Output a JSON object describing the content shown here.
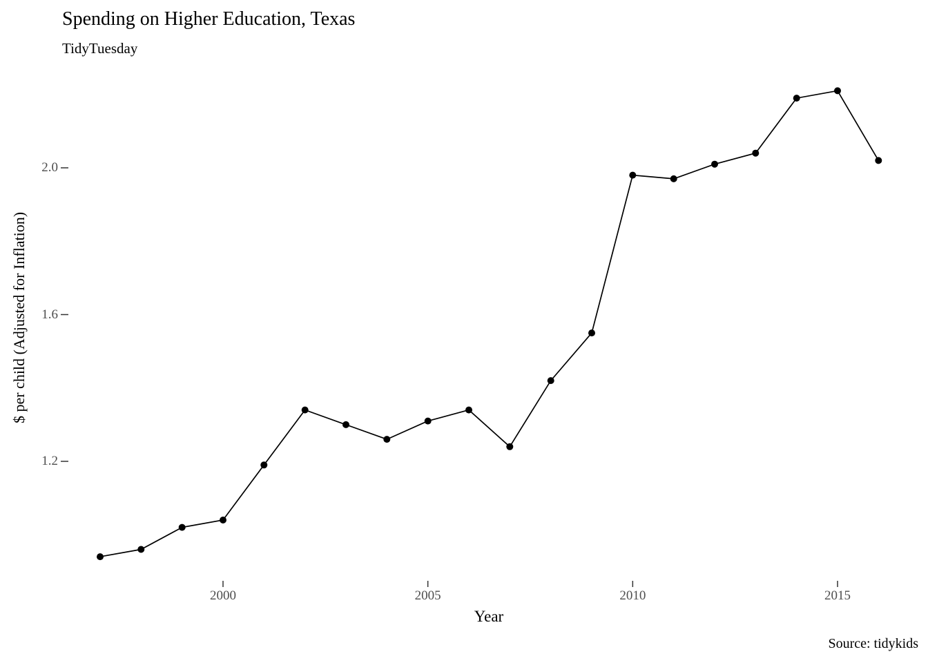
{
  "header": {
    "title": "Spending on Higher Education, Texas",
    "subtitle": "TidyTuesday"
  },
  "caption": {
    "source": "Source: tidykids"
  },
  "chart_data": {
    "type": "line",
    "title": "Spending on Higher Education, Texas",
    "subtitle": "TidyTuesday",
    "xlabel": "Year",
    "ylabel": "$ per child (Adjusted for Inflation)",
    "x": [
      1997,
      1998,
      1999,
      2000,
      2001,
      2002,
      2003,
      2004,
      2005,
      2006,
      2007,
      2008,
      2009,
      2010,
      2011,
      2012,
      2013,
      2014,
      2015,
      2016
    ],
    "values": [
      0.94,
      0.96,
      1.02,
      1.04,
      1.19,
      1.34,
      1.3,
      1.26,
      1.31,
      1.34,
      1.24,
      1.42,
      1.55,
      1.98,
      1.97,
      2.01,
      2.04,
      2.19,
      2.21,
      2.02
    ],
    "x_ticks": [
      2000,
      2005,
      2010,
      2015
    ],
    "y_ticks": [
      1.2,
      1.6,
      2.0
    ],
    "xlim": [
      1996.1,
      2017.0
    ],
    "ylim": [
      0.87,
      2.27
    ],
    "grid": false,
    "legend": false,
    "line_color": "#000000",
    "point_color": "#000000",
    "tick_color": "#333333",
    "axis_text_color": "#4d4d4d",
    "background_color": "#ffffff"
  }
}
